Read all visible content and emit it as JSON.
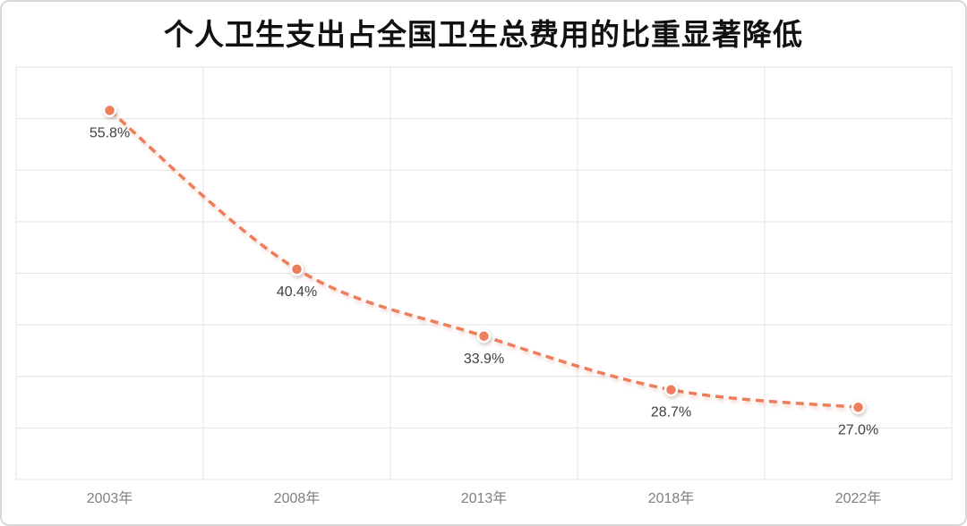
{
  "title": "个人卫生支出占全国卫生总费用的比重显著降低",
  "chart_data": {
    "type": "line",
    "categories": [
      "2003年",
      "2008年",
      "2013年",
      "2018年",
      "2022年"
    ],
    "values": [
      55.8,
      40.4,
      33.9,
      28.7,
      27.0
    ],
    "point_labels": [
      "55.8%",
      "40.4%",
      "33.9%",
      "28.7%",
      "27.0%"
    ],
    "title": "个人卫生支出占全国卫生总费用的比重显著降低",
    "xlabel": "",
    "ylabel": "",
    "ylim": [
      20,
      60
    ],
    "grid_step": 5,
    "grid": true,
    "legend_position": "none",
    "line_style": "dashed",
    "smooth": true,
    "colors": {
      "line": "#ED7D5B",
      "marker_fill": "#ED7D5B",
      "marker_ring": "#FFFFFF",
      "point_label": "#404040",
      "axis_label": "#7F7F7F",
      "grid": "#E3E3E3",
      "title": "#111111",
      "card_border": "#D8D8D8",
      "background": "#FFFFFF"
    }
  }
}
